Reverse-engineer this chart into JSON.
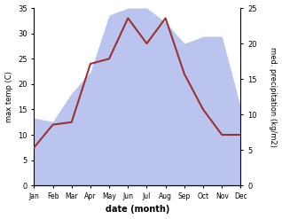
{
  "months": [
    "Jan",
    "Feb",
    "Mar",
    "Apr",
    "May",
    "Jun",
    "Jul",
    "Aug",
    "Sep",
    "Oct",
    "Nov",
    "Dec"
  ],
  "temp": [
    7.5,
    12.0,
    12.5,
    24.0,
    25.0,
    33.0,
    28.0,
    33.0,
    22.0,
    15.0,
    10.0,
    10.0
  ],
  "precip": [
    9.5,
    9.0,
    13.0,
    16.0,
    24.0,
    25.0,
    25.0,
    23.0,
    20.0,
    21.0,
    21.0,
    11.0
  ],
  "temp_color": "#993333",
  "precip_color": "#bbc4ee",
  "ylabel_left": "max temp (C)",
  "ylabel_right": "med. precipitation (kg/m2)",
  "xlabel": "date (month)",
  "ylim_left": [
    0,
    35
  ],
  "ylim_right": [
    0,
    25
  ],
  "yticks_left": [
    0,
    5,
    10,
    15,
    20,
    25,
    30,
    35
  ],
  "yticks_right": [
    0,
    5,
    10,
    15,
    20,
    25
  ]
}
